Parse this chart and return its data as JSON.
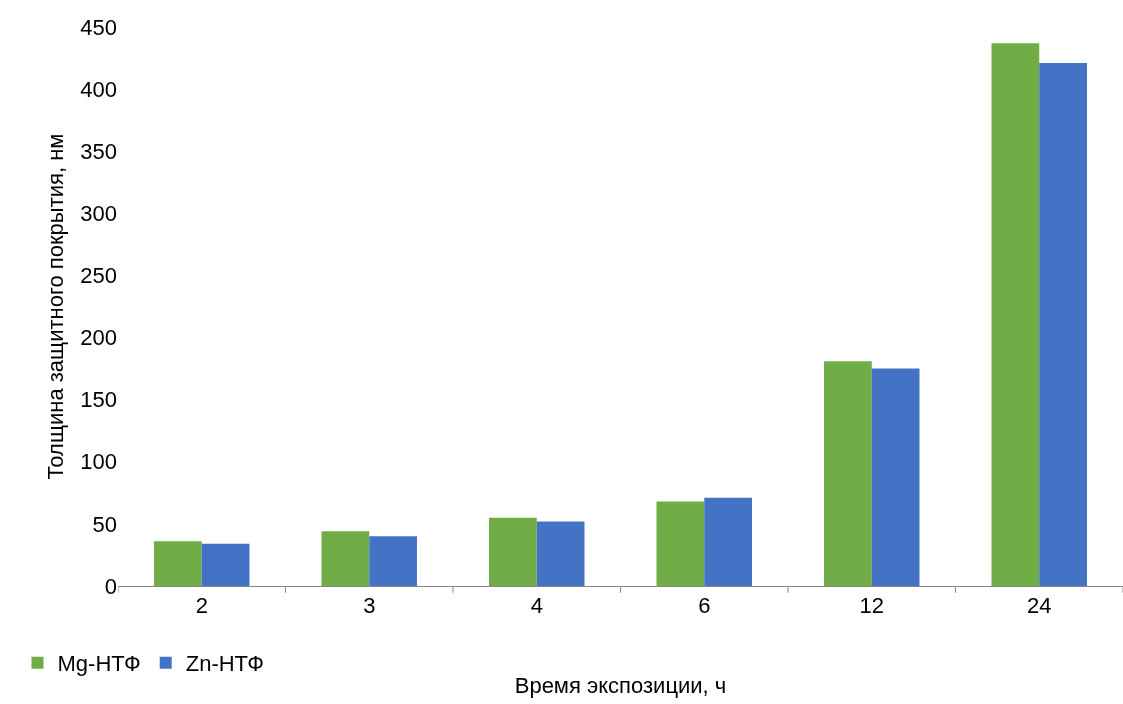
{
  "chart_data": {
    "type": "bar",
    "xlabel": "Время экспозиции, ч",
    "ylabel": "Толщина защитного покрытия, нм",
    "categories": [
      "2",
      "3",
      "4",
      "6",
      "12",
      "24"
    ],
    "series": [
      {
        "name": "Mg-НТФ",
        "color": "#70ad47",
        "values": [
          36,
          44,
          55,
          68,
          181,
          437
        ]
      },
      {
        "name": "Zn-НТФ",
        "color": "#4472c4",
        "values": [
          34,
          40,
          52,
          71,
          175,
          421
        ]
      }
    ],
    "ylim": [
      0,
      450
    ],
    "yticks": [
      0,
      50,
      100,
      150,
      200,
      250,
      300,
      350,
      400,
      450
    ],
    "grid": false,
    "legend": "bottom left"
  }
}
